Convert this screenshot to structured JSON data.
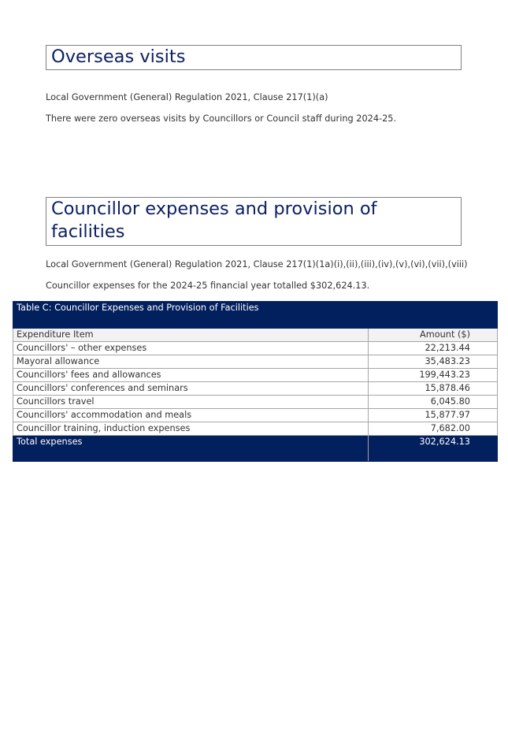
{
  "overseas": {
    "heading": "Overseas visits",
    "clause": "Local Government (General) Regulation 2021, Clause 217(1)(a)",
    "statement": "There were zero overseas visits by Councillors or Council staff during 2024-25."
  },
  "expenses": {
    "heading": "Councillor expenses and provision of facilities",
    "clause": "Local Government (General) Regulation 2021, Clause 217(1)(1a)(i),(ii),(iii),(iv),(v),(vi),(vii),(viii)",
    "statement": "Councillor expenses for the 2024-25 financial year totalled $302,624.13."
  },
  "table": {
    "title": "Table C: Councillor Expenses and Provision of Facilities",
    "headers": [
      "Expenditure Item",
      "Amount ($)"
    ],
    "rows": [
      [
        "Councillors' – other expenses",
        "22,213.44"
      ],
      [
        "Mayoral allowance",
        "35,483.23"
      ],
      [
        "Councillors' fees and allowances",
        "199,443.23"
      ],
      [
        "Councillors' conferences and seminars",
        "15,878.46"
      ],
      [
        "Councillors travel",
        "6,045.80"
      ],
      [
        "Councillors' accommodation and meals",
        "15,877.97"
      ],
      [
        "Councillor training, induction expenses",
        "7,682.00"
      ]
    ],
    "total": [
      "Total expenses",
      "302,624.13"
    ],
    "header_color": "#021f5e"
  }
}
